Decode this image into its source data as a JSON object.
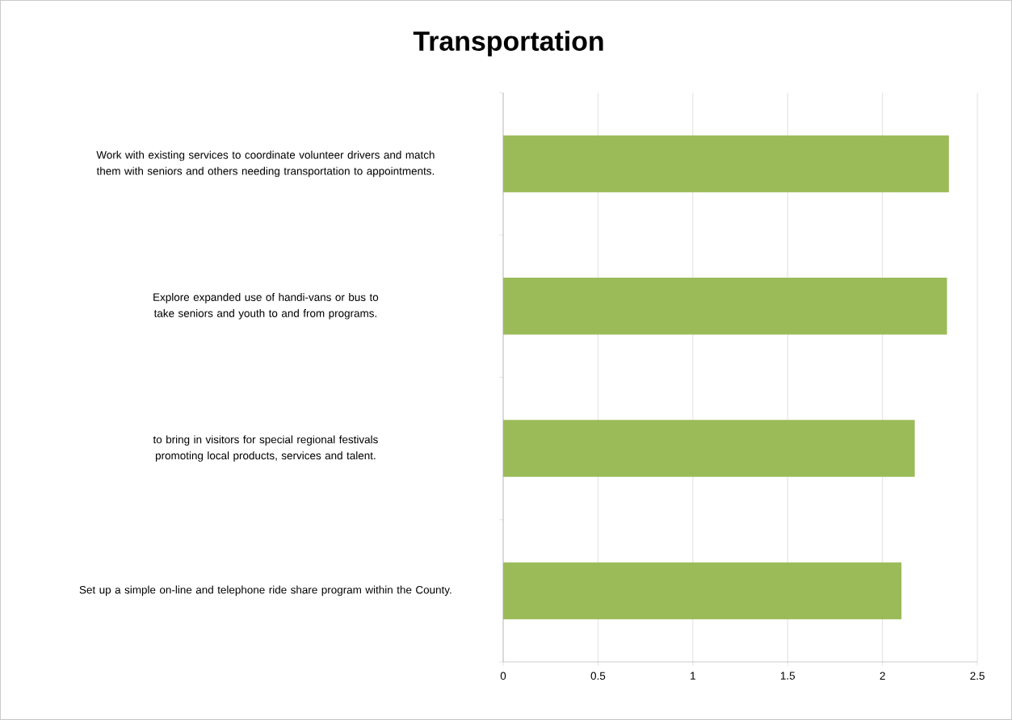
{
  "chart_data": {
    "type": "bar",
    "orientation": "horizontal",
    "title": "Transportation",
    "categories": [
      "Work with existing services to coordinate volunteer drivers and match them with seniors and others needing transportation to appointments.",
      "Explore expanded use of handi-vans or bus to take seniors and youth to and from programs.",
      "to bring in visitors for special regional festivals promoting local products, services and talent.",
      "Set up a simple on-line and telephone ride share program within the County."
    ],
    "values": [
      2.35,
      2.34,
      2.17,
      2.1
    ],
    "color": "#9bbb59",
    "xlim": [
      0,
      2.5
    ],
    "xticks": [
      0,
      0.5,
      1,
      1.5,
      2,
      2.5
    ],
    "grid": "x"
  }
}
